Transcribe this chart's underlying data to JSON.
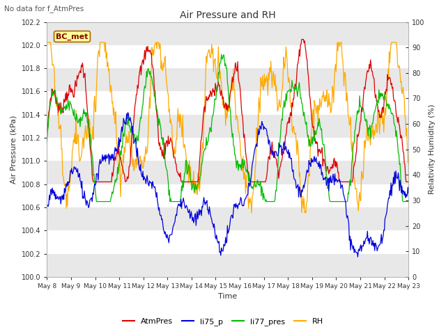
{
  "title": "Air Pressure and RH",
  "top_left_text": "No data for f_AtmPres",
  "annotation_box": "BC_met",
  "xlabel": "Time",
  "ylabel_left": "Air Pressure (kPa)",
  "ylabel_right": "Relativity Humidity (%)",
  "ylim_left": [
    100.0,
    102.2
  ],
  "ylim_right": [
    0,
    100
  ],
  "yticks_left": [
    100.0,
    100.2,
    100.4,
    100.6,
    100.8,
    101.0,
    101.2,
    101.4,
    101.6,
    101.8,
    102.0,
    102.2
  ],
  "yticks_right": [
    0,
    10,
    20,
    30,
    40,
    50,
    60,
    70,
    80,
    90,
    100
  ],
  "xtick_labels": [
    "May 8",
    "May 9",
    "May 10",
    "May 11",
    "May 12",
    "May 13",
    "May 14",
    "May 15",
    "May 16",
    "May 17",
    "May 18",
    "May 19",
    "May 20",
    "May 21",
    "May 22",
    "May 23"
  ],
  "colors": {
    "AtmPres": "#dd0000",
    "li75_p": "#0000dd",
    "li77_pres": "#00bb00",
    "RH": "#ffaa00"
  },
  "legend_labels": [
    "AtmPres",
    "li75_p",
    "li77_pres",
    "RH"
  ],
  "fig_bg": "#ffffff",
  "plot_bg": "#ffffff",
  "band_color": "#e8e8e8",
  "grid_line_color": "#cccccc",
  "n_points": 600
}
